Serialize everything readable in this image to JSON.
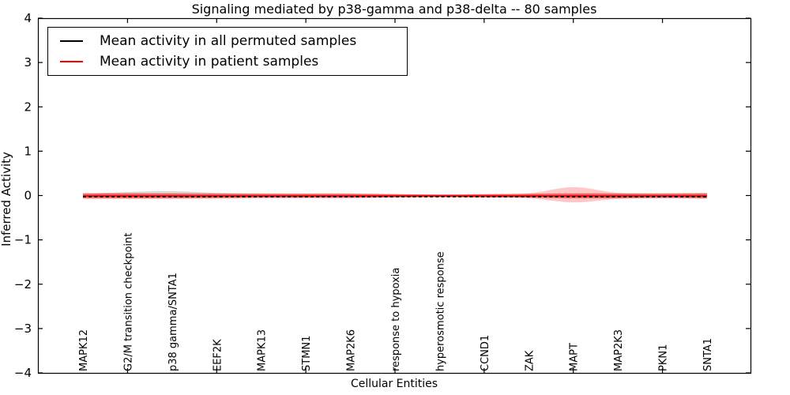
{
  "chart_data": {
    "type": "line",
    "title": "Signaling mediated by p38-gamma and p38-delta -- 80 samples",
    "xlabel": "Cellular Entities",
    "ylabel": "Inferred Activity",
    "ylim": [
      -4,
      4
    ],
    "yticks": [
      4,
      3,
      2,
      1,
      0,
      -1,
      -2,
      -3,
      -4
    ],
    "ytick_labels": [
      "4",
      "3",
      "2",
      "1",
      "0",
      "−1",
      "−2",
      "−3",
      "−4"
    ],
    "grid": false,
    "legend_position": "upper left",
    "categories": [
      "MAPK12",
      "G2/M transition checkpoint",
      "p38 gamma/SNTA1",
      "EEF2K",
      "MAPK13",
      "STMN1",
      "MAP2K6",
      "response to hypoxia",
      "hyperosmotic response",
      "CCND1",
      "ZAK",
      "MAPT",
      "MAP2K3",
      "PKN1",
      "SNTA1"
    ],
    "series": [
      {
        "name": "Mean activity in all permuted samples",
        "color": "#000000",
        "line_style": "dashed",
        "values": [
          -0.01,
          -0.01,
          -0.01,
          -0.01,
          -0.01,
          -0.01,
          -0.01,
          -0.01,
          -0.01,
          -0.01,
          -0.01,
          -0.01,
          -0.01,
          -0.01,
          -0.01
        ],
        "band_color": "#000000",
        "band_opacity": 0.15,
        "band_upper": [
          0.03,
          0.08,
          0.1,
          0.06,
          0.04,
          0.035,
          0.035,
          0.025,
          0.025,
          0.025,
          0.035,
          0.045,
          0.05,
          0.05,
          0.06
        ],
        "band_lower": [
          -0.045,
          -0.055,
          -0.065,
          -0.055,
          -0.045,
          -0.045,
          -0.045,
          -0.045,
          -0.045,
          -0.045,
          -0.045,
          -0.055,
          -0.065,
          -0.065,
          -0.07
        ]
      },
      {
        "name": "Mean activity in patient samples",
        "color": "#ff0000",
        "line_style": "solid",
        "values": [
          -0.01,
          -0.01,
          -0.01,
          -0.01,
          -0.01,
          -0.01,
          -0.01,
          -0.01,
          -0.01,
          -0.01,
          -0.01,
          -0.01,
          -0.01,
          -0.01,
          -0.01
        ],
        "band_color": "#ff0000",
        "band_opacity": 0.22,
        "band_upper": [
          0.06,
          0.06,
          0.055,
          0.05,
          0.045,
          0.045,
          0.045,
          0.035,
          0.025,
          0.035,
          0.05,
          0.19,
          0.06,
          0.05,
          0.055
        ],
        "band_lower": [
          -0.08,
          -0.08,
          -0.075,
          -0.07,
          -0.06,
          -0.06,
          -0.06,
          -0.05,
          -0.04,
          -0.05,
          -0.06,
          -0.155,
          -0.075,
          -0.06,
          -0.07
        ],
        "inner_band_opacity": 0.4,
        "inner_upper": [
          0.045,
          0.045,
          0.045,
          0.04,
          0.04,
          0.04,
          0.04,
          0.03,
          0.02,
          0.03,
          0.04,
          0.05,
          0.045,
          0.04,
          0.045
        ],
        "inner_lower": [
          -0.06,
          -0.06,
          -0.055,
          -0.055,
          -0.05,
          -0.05,
          -0.05,
          -0.04,
          -0.03,
          -0.04,
          -0.05,
          -0.065,
          -0.06,
          -0.05,
          -0.06
        ]
      }
    ]
  }
}
